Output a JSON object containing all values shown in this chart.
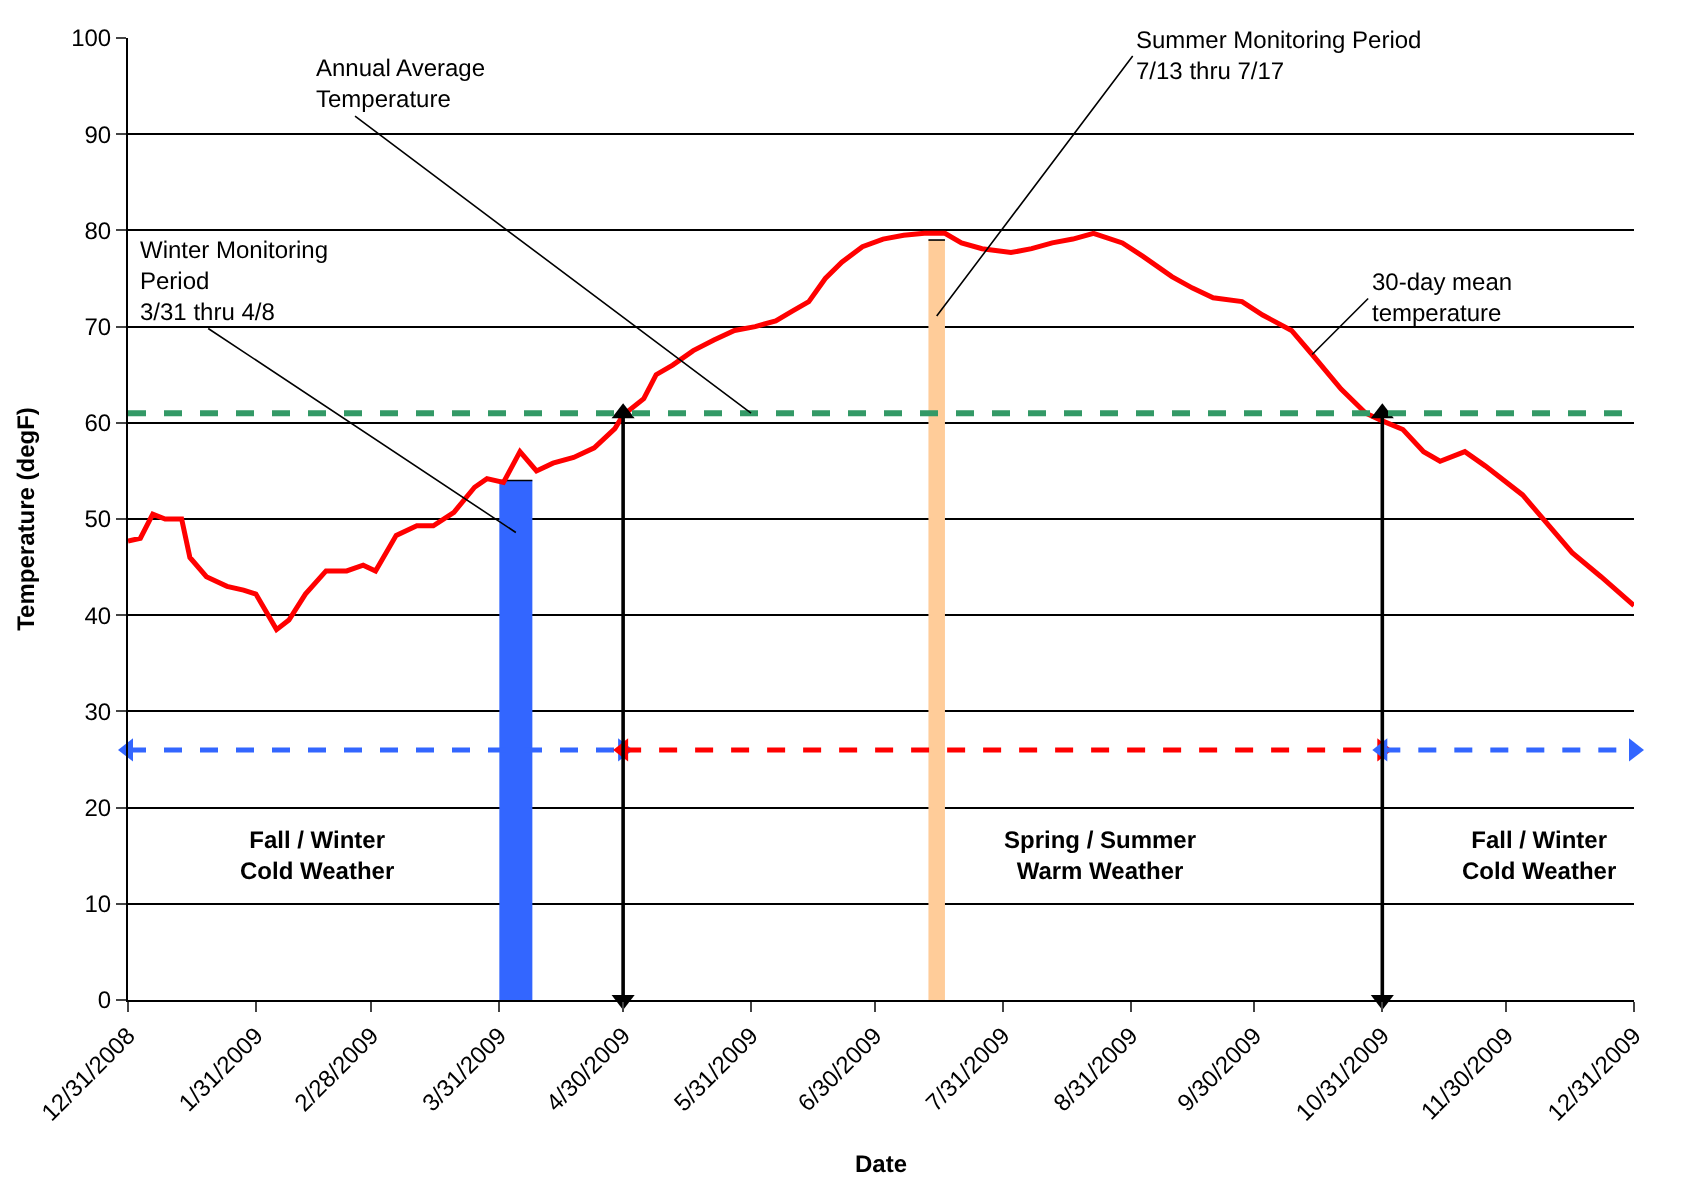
{
  "chart_data": {
    "type": "line",
    "xlabel": "Date",
    "ylabel": "Temperature (degF)",
    "xlim": [
      "2008-12-31",
      "2009-12-31"
    ],
    "xticks": [
      {
        "value": "2008-12-31",
        "label": "12/31/2008"
      },
      {
        "value": "2009-01-31",
        "label": "1/31/2009"
      },
      {
        "value": "2009-02-28",
        "label": "2/28/2009"
      },
      {
        "value": "2009-03-31",
        "label": "3/31/2009"
      },
      {
        "value": "2009-04-30",
        "label": "4/30/2009"
      },
      {
        "value": "2009-05-31",
        "label": "5/31/2009"
      },
      {
        "value": "2009-06-30",
        "label": "6/30/2009"
      },
      {
        "value": "2009-07-31",
        "label": "7/31/2009"
      },
      {
        "value": "2009-08-31",
        "label": "8/31/2009"
      },
      {
        "value": "2009-09-30",
        "label": "9/30/2009"
      },
      {
        "value": "2009-10-31",
        "label": "10/31/2009"
      },
      {
        "value": "2009-11-30",
        "label": "11/30/2009"
      },
      {
        "value": "2009-12-31",
        "label": "12/31/2009"
      }
    ],
    "ylim": [
      0,
      100
    ],
    "yticks": [
      0,
      10,
      20,
      30,
      40,
      50,
      60,
      70,
      80,
      90,
      100
    ],
    "grid": "y",
    "legend": false,
    "series": [
      {
        "type": "area",
        "name": "Winter Monitoring\nPeriod\n3/31 thru 4/8",
        "color": "#3366ff",
        "x": [
          "2009-03-31",
          "2009-04-08"
        ],
        "values": [
          54,
          54
        ]
      },
      {
        "type": "area",
        "name": "Summer Monitoring Period\n7/13 thru 7/17",
        "color": "#ffcc99",
        "x": [
          "2009-07-13",
          "2009-07-17"
        ],
        "values": [
          79,
          79
        ]
      },
      {
        "name": "30-day mean\ntemperature",
        "color": "#ff0000",
        "marker": "none",
        "line_style": "solid",
        "x": [
          "2008-12-31",
          "2009-01-03",
          "2009-01-06",
          "2009-01-09",
          "2009-01-13",
          "2009-01-15",
          "2009-01-19",
          "2009-01-24",
          "2009-01-28",
          "2009-01-31",
          "2009-02-05",
          "2009-02-08",
          "2009-02-12",
          "2009-02-17",
          "2009-02-22",
          "2009-02-26",
          "2009-03-01",
          "2009-03-06",
          "2009-03-11",
          "2009-03-15",
          "2009-03-20",
          "2009-03-25",
          "2009-03-28",
          "2009-04-01",
          "2009-04-05",
          "2009-04-09",
          "2009-04-13",
          "2009-04-18",
          "2009-04-23",
          "2009-04-28",
          "2009-04-30",
          "2009-05-05",
          "2009-05-08",
          "2009-05-12",
          "2009-05-17",
          "2009-05-22",
          "2009-05-27",
          "2009-06-01",
          "2009-06-06",
          "2009-06-10",
          "2009-06-14",
          "2009-06-18",
          "2009-06-22",
          "2009-06-27",
          "2009-07-02",
          "2009-07-07",
          "2009-07-12",
          "2009-07-17",
          "2009-07-21",
          "2009-07-26",
          "2009-08-02",
          "2009-08-07",
          "2009-08-12",
          "2009-08-17",
          "2009-08-22",
          "2009-08-29",
          "2009-09-03",
          "2009-09-10",
          "2009-09-15",
          "2009-09-20",
          "2009-09-27",
          "2009-10-02",
          "2009-10-09",
          "2009-10-14",
          "2009-10-21",
          "2009-10-27",
          "2009-10-31",
          "2009-11-05",
          "2009-11-10",
          "2009-11-14",
          "2009-11-20",
          "2009-11-25",
          "2009-12-04",
          "2009-12-11",
          "2009-12-16",
          "2009-12-23",
          "2009-12-31"
        ],
        "values": [
          47.7,
          48,
          50.5,
          50,
          50,
          46,
          44,
          43,
          42.6,
          42.2,
          38.5,
          39.5,
          42.2,
          44.6,
          44.6,
          45.2,
          44.6,
          48.3,
          49.3,
          49.3,
          50.7,
          53.3,
          54.2,
          53.8,
          57,
          55,
          55.8,
          56.4,
          57.4,
          59.4,
          60.8,
          62.5,
          65,
          66,
          67.5,
          68.6,
          69.6,
          70,
          70.6,
          71.6,
          72.6,
          75,
          76.7,
          78.3,
          79.1,
          79.5,
          79.7,
          79.7,
          78.7,
          78.1,
          77.7,
          78.1,
          78.7,
          79.1,
          79.7,
          78.7,
          77.3,
          75.2,
          74,
          73,
          72.6,
          71.2,
          69.6,
          67.1,
          63.5,
          61,
          60.2,
          59.3,
          57,
          56,
          57,
          55.5,
          52.5,
          49,
          46.5,
          44,
          41
        ]
      },
      {
        "type": "line",
        "color": "#3366ff",
        "marker": "triangle",
        "line_style": "dashed",
        "x": [
          "2008-12-31",
          "2009-04-30"
        ],
        "values": [
          26,
          26
        ]
      },
      {
        "type": "line",
        "color": "#ff0000",
        "marker": "triangle",
        "line_style": "dashed",
        "x": [
          "2009-04-30",
          "2009-10-31"
        ],
        "values": [
          26,
          26
        ]
      },
      {
        "type": "line",
        "color": "#3366ff",
        "marker": "triangle",
        "line_style": "dashed",
        "x": [
          "2009-10-31",
          "2009-12-31"
        ],
        "values": [
          26,
          26
        ]
      },
      {
        "type": "line",
        "color": "#000000",
        "marker": "triangle",
        "line_style": "solid",
        "x": [
          "2009-04-30",
          "2009-04-30"
        ],
        "values": [
          61,
          0
        ]
      },
      {
        "type": "line",
        "color": "#000000",
        "marker": "triangle",
        "line_style": "solid",
        "x": [
          "2009-10-31",
          "2009-10-31"
        ],
        "values": [
          61,
          0
        ]
      }
    ],
    "ref_lines": [
      {
        "axis": "y",
        "value": 61,
        "label": "Annual Average\nTemperature",
        "color": "#339966",
        "line_style": "dashed"
      }
    ],
    "annotations": [
      "Fall / Winter\nCold Weather",
      "Spring / Summer\nWarm Weather",
      "Fall / Winter\nCold Weather"
    ]
  }
}
